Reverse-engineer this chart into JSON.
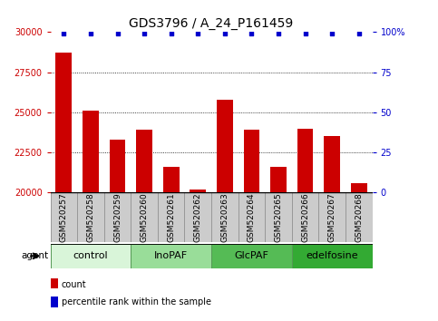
{
  "title": "GDS3796 / A_24_P161459",
  "samples": [
    "GSM520257",
    "GSM520258",
    "GSM520259",
    "GSM520260",
    "GSM520261",
    "GSM520262",
    "GSM520263",
    "GSM520264",
    "GSM520265",
    "GSM520266",
    "GSM520267",
    "GSM520268"
  ],
  "counts": [
    28700,
    25100,
    23300,
    23900,
    21600,
    20200,
    25800,
    23900,
    21600,
    23950,
    23500,
    20600
  ],
  "percentiles": [
    99,
    99,
    99,
    99,
    99,
    99,
    99,
    99,
    99,
    99,
    99,
    99
  ],
  "groups": [
    {
      "label": "control",
      "indices": [
        0,
        1,
        2
      ],
      "color": "#d9f5d9"
    },
    {
      "label": "InoPAF",
      "indices": [
        3,
        4,
        5
      ],
      "color": "#99dd99"
    },
    {
      "label": "GlcPAF",
      "indices": [
        6,
        7,
        8
      ],
      "color": "#55bb55"
    },
    {
      "label": "edelfosine",
      "indices": [
        9,
        10,
        11
      ],
      "color": "#33aa33"
    }
  ],
  "ylim_left": [
    20000,
    30000
  ],
  "ylim_right": [
    0,
    100
  ],
  "yticks_left": [
    20000,
    22500,
    25000,
    27500,
    30000
  ],
  "yticks_right": [
    0,
    25,
    50,
    75,
    100
  ],
  "bar_color": "#cc0000",
  "dot_color": "#0000cc",
  "bar_width": 0.6,
  "tick_label_color_left": "#cc0000",
  "tick_label_color_right": "#0000cc",
  "title_fontsize": 10,
  "tick_fontsize": 7,
  "group_fontsize": 8,
  "sample_fontsize": 6.5,
  "legend_count_color": "#cc0000",
  "legend_pct_color": "#0000cc",
  "agent_label": "agent"
}
